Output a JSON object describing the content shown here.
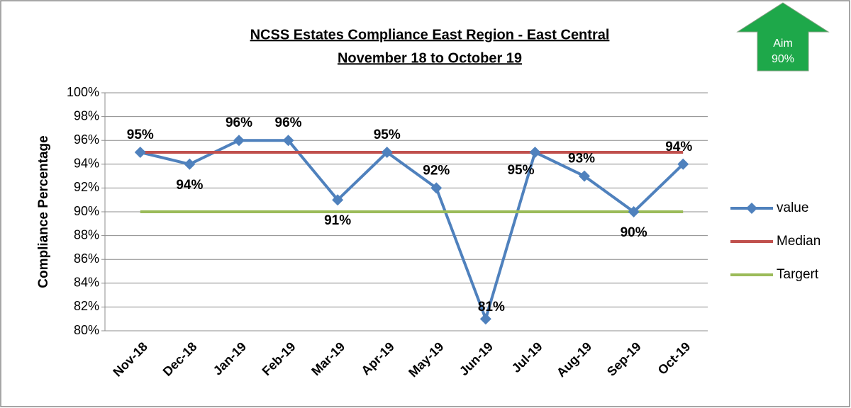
{
  "chart_data": {
    "type": "line",
    "title": "NCSS Estates Compliance East  Region - East Central",
    "subtitle": "November 18 to October 19",
    "y_label": "Compliance Percentage",
    "annotations": [
      "Aim",
      "90%"
    ],
    "categories": [
      "Nov-18",
      "Dec-18",
      "Jan-19",
      "Feb-19",
      "Mar-19",
      "Apr-19",
      "May-19",
      "Jun-19",
      "Jul-19",
      "Aug-19",
      "Sep-19",
      "Oct-19"
    ],
    "series": [
      {
        "name": "value",
        "color": "#4f81bd",
        "values": [
          95,
          94,
          96,
          96,
          91,
          95,
          92,
          81,
          95,
          93,
          90,
          94
        ],
        "value_labels": [
          "95%",
          "94%",
          "96%",
          "96%",
          "91%",
          "95%",
          "92%",
          "81%",
          "95%",
          "93%",
          "90%",
          "94%"
        ]
      },
      {
        "name": "Median",
        "color": "#c0504d",
        "values": [
          95,
          95,
          95,
          95,
          95,
          95,
          95,
          95,
          95,
          95,
          95,
          95
        ]
      },
      {
        "name": "Targert",
        "color": "#9bbb59",
        "values": [
          90,
          90,
          90,
          90,
          90,
          90,
          90,
          90,
          90,
          90,
          90,
          90
        ]
      }
    ],
    "ylim": [
      80,
      100
    ],
    "yticks": [
      {
        "value": 80,
        "label": "80%"
      },
      {
        "value": 82,
        "label": "82%"
      },
      {
        "value": 84,
        "label": "84%"
      },
      {
        "value": 86,
        "label": "86%"
      },
      {
        "value": 88,
        "label": "88%"
      },
      {
        "value": 90,
        "label": "90%"
      },
      {
        "value": 92,
        "label": "92%"
      },
      {
        "value": 94,
        "label": "94%"
      },
      {
        "value": 96,
        "label": "96%"
      },
      {
        "value": 98,
        "label": "98%"
      },
      {
        "value": 100,
        "label": "100%"
      }
    ],
    "grid": true,
    "legend": "right"
  }
}
